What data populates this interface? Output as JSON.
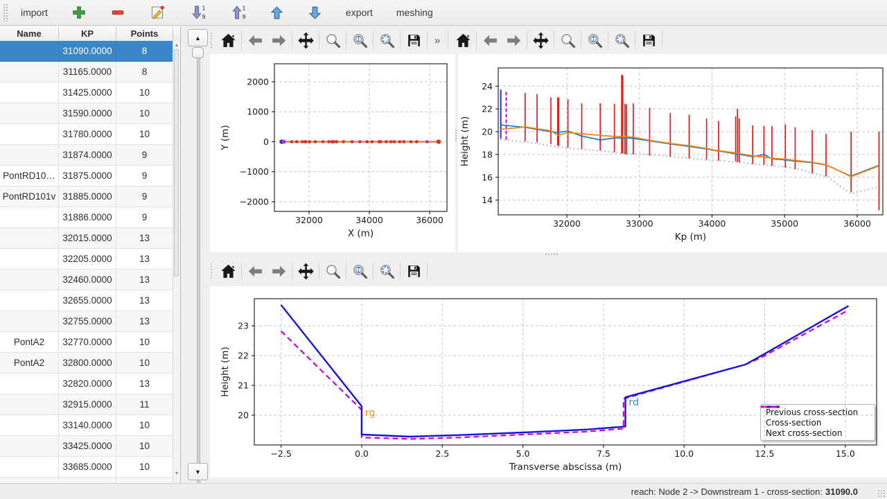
{
  "app_toolbar": {
    "items": [
      {
        "type": "text",
        "label": "import",
        "name": "import-button"
      },
      {
        "type": "icon",
        "icon": "add",
        "name": "add-cross-section-button"
      },
      {
        "type": "icon",
        "icon": "remove",
        "name": "remove-cross-section-button"
      },
      {
        "type": "icon",
        "icon": "edit",
        "name": "edit-cross-section-button"
      },
      {
        "type": "icon",
        "icon": "sort-desc",
        "name": "sort-descending-button"
      },
      {
        "type": "icon",
        "icon": "sort-asc",
        "name": "sort-ascending-button"
      },
      {
        "type": "icon",
        "icon": "arrow-up",
        "name": "move-up-button"
      },
      {
        "type": "icon",
        "icon": "arrow-down",
        "name": "move-down-button"
      },
      {
        "type": "text",
        "label": "export",
        "name": "export-button"
      },
      {
        "type": "text",
        "label": "meshing",
        "name": "meshing-button"
      }
    ]
  },
  "table": {
    "columns": [
      "Name",
      "KP",
      "Points"
    ],
    "selected_index": 0,
    "rows": [
      {
        "name": "",
        "kp": "31090.0000",
        "points": "8"
      },
      {
        "name": "",
        "kp": "31165.0000",
        "points": "8"
      },
      {
        "name": "",
        "kp": "31425.0000",
        "points": "10"
      },
      {
        "name": "",
        "kp": "31590.0000",
        "points": "10"
      },
      {
        "name": "",
        "kp": "31780.0000",
        "points": "10"
      },
      {
        "name": "",
        "kp": "31874.0000",
        "points": "9"
      },
      {
        "name": "PontRD10…",
        "kp": "31875.0000",
        "points": "9"
      },
      {
        "name": "PontRD101v",
        "kp": "31885.0000",
        "points": "9"
      },
      {
        "name": "",
        "kp": "31886.0000",
        "points": "9"
      },
      {
        "name": "",
        "kp": "32015.0000",
        "points": "13"
      },
      {
        "name": "",
        "kp": "32205.0000",
        "points": "13"
      },
      {
        "name": "",
        "kp": "32460.0000",
        "points": "13"
      },
      {
        "name": "",
        "kp": "32655.0000",
        "points": "13"
      },
      {
        "name": "",
        "kp": "32755.0000",
        "points": "13"
      },
      {
        "name": "PontA2",
        "kp": "32770.0000",
        "points": "10"
      },
      {
        "name": "PontA2",
        "kp": "32800.0000",
        "points": "10"
      },
      {
        "name": "",
        "kp": "32820.0000",
        "points": "13"
      },
      {
        "name": "",
        "kp": "32915.0000",
        "points": "11"
      },
      {
        "name": "",
        "kp": "33140.0000",
        "points": "10"
      },
      {
        "name": "",
        "kp": "33425.0000",
        "points": "10"
      },
      {
        "name": "",
        "kp": "33685.0000",
        "points": "10"
      },
      {
        "name": "",
        "kp": "",
        "points": ""
      }
    ]
  },
  "nav_toolbar": {
    "overflow": "»",
    "icons": [
      {
        "icon": "home",
        "name": "home-button"
      },
      {
        "icon": "back",
        "name": "back-button"
      },
      {
        "icon": "forward",
        "name": "forward-button"
      },
      {
        "icon": "pan",
        "name": "pan-button"
      },
      {
        "icon": "zoom",
        "name": "zoom-button"
      },
      {
        "icon": "zoom-one",
        "name": "zoom-100-button"
      },
      {
        "icon": "zoom-region",
        "name": "zoom-selection-button"
      },
      {
        "icon": "save",
        "name": "save-figure-button"
      }
    ]
  },
  "status_bar": {
    "text": "reach: Node 2 -> Downstream 1 - cross-section: ",
    "value": "31090.0"
  },
  "chart_data": [
    {
      "id": "plan",
      "type": "line",
      "xlabel": "X (m)",
      "ylabel": "Y (m)",
      "xlim": [
        30851,
        36575
      ],
      "ylim": [
        -2324,
        2601
      ],
      "xticks": [
        32000,
        34000,
        36000
      ],
      "xtick_labels": [
        "32000",
        "34000",
        "36000"
      ],
      "yticks": [
        2000,
        1000,
        0,
        -1000,
        -2000
      ],
      "ytick_labels": [
        "2000",
        "1000",
        "0",
        "−1000",
        "−2000"
      ],
      "path_y": 0,
      "path_x_range": [
        31090,
        36310
      ],
      "line_color": "#ff7f0e",
      "underline_color": "#7796b8",
      "marker_color": "#e8291d",
      "first_marker_color": "#3535cf",
      "second_marker_color": "#b238d2",
      "marker_x": [
        31090,
        31165,
        31425,
        31590,
        31780,
        31874,
        31875,
        31885,
        31886,
        32015,
        32205,
        32460,
        32655,
        32755,
        32770,
        32800,
        32820,
        32915,
        33140,
        33425,
        33685,
        33925,
        34090,
        34325,
        34350,
        34375,
        34560,
        34715,
        34825,
        35010,
        35145,
        35380,
        35570,
        35915,
        36300
      ]
    },
    {
      "id": "profile",
      "type": "line",
      "xlabel": "Kp (m)",
      "ylabel": "Height (m)",
      "xlim": [
        31055,
        36353
      ],
      "ylim": [
        12.7,
        25.6
      ],
      "xticks": [
        32000,
        33000,
        34000,
        35000,
        36000
      ],
      "xtick_labels": [
        "32000",
        "33000",
        "34000",
        "35000",
        "36000"
      ],
      "yticks": [
        14,
        16,
        18,
        20,
        22,
        24
      ],
      "ytick_labels": [
        "14",
        "16",
        "18",
        "20",
        "22",
        "24"
      ],
      "bar_color": "#e51c16",
      "bars": [
        [
          31425,
          19.15,
          23.4
        ],
        [
          31590,
          19.05,
          23.3
        ],
        [
          31780,
          18.9,
          23.0
        ],
        [
          31874,
          18.8,
          23.0
        ],
        [
          31875,
          18.8,
          23.0
        ],
        [
          31885,
          18.75,
          23.0
        ],
        [
          31886,
          18.75,
          23.0
        ],
        [
          32015,
          18.6,
          22.85
        ],
        [
          32205,
          18.5,
          22.5
        ],
        [
          32460,
          18.35,
          22.5
        ],
        [
          32655,
          18.2,
          22.45
        ],
        [
          32755,
          18.1,
          25.0
        ],
        [
          32770,
          18.1,
          24.95
        ],
        [
          32800,
          18.05,
          22.45
        ],
        [
          32820,
          18.0,
          22.4
        ],
        [
          32915,
          18.0,
          22.5
        ],
        [
          33140,
          17.9,
          22.1
        ],
        [
          33425,
          17.8,
          21.65
        ],
        [
          33685,
          17.65,
          21.5
        ],
        [
          33925,
          17.55,
          21.15
        ],
        [
          34090,
          17.45,
          20.95
        ],
        [
          34325,
          17.4,
          21.35
        ],
        [
          34350,
          17.35,
          22.0
        ],
        [
          34375,
          17.3,
          21.15
        ],
        [
          34560,
          17.15,
          20.55
        ],
        [
          34715,
          17.1,
          20.5
        ],
        [
          34825,
          17.0,
          20.5
        ],
        [
          35010,
          16.85,
          20.65
        ],
        [
          35145,
          16.7,
          20.4
        ],
        [
          35380,
          16.35,
          20.15
        ],
        [
          35570,
          16.1,
          19.8
        ],
        [
          35915,
          14.7,
          20.0
        ],
        [
          36300,
          13.1,
          20.0
        ]
      ],
      "selected_line": {
        "x": 31090,
        "y0": 19.4,
        "y1": 23.7,
        "color": "#2a2ae0"
      },
      "next_line": {
        "x": 31165,
        "y0": 19.3,
        "y1": 23.5,
        "color": "#cc00cc"
      },
      "series": [
        {
          "name": "bed",
          "style": "dotted",
          "color": "#c9c9c9",
          "width": 2.6,
          "points": [
            [
              31090,
              19.3
            ],
            [
              31500,
              19.05
            ],
            [
              31900,
              18.62
            ],
            [
              32205,
              18.45
            ],
            [
              32500,
              18.3
            ],
            [
              32800,
              18.08
            ],
            [
              33140,
              18.0
            ],
            [
              33425,
              17.82
            ],
            [
              33685,
              17.68
            ],
            [
              33925,
              17.52
            ],
            [
              34090,
              17.48
            ],
            [
              34375,
              17.3
            ],
            [
              34715,
              17.1
            ],
            [
              35010,
              16.9
            ],
            [
              35200,
              16.72
            ],
            [
              35380,
              16.35
            ],
            [
              35570,
              16.1
            ],
            [
              35915,
              14.55
            ],
            [
              36300,
              15.15
            ]
          ]
        },
        {
          "name": "left-bank",
          "style": "solid",
          "color": "#1f77b4",
          "width": 1.7,
          "points": [
            [
              31090,
              20.6
            ],
            [
              31425,
              20.38
            ],
            [
              31780,
              20.0
            ],
            [
              31874,
              19.92
            ],
            [
              31886,
              19.95
            ],
            [
              32015,
              20.05
            ],
            [
              32205,
              19.62
            ],
            [
              32460,
              19.27
            ],
            [
              32655,
              19.45
            ],
            [
              32820,
              19.45
            ],
            [
              32915,
              19.42
            ],
            [
              33140,
              19.2
            ],
            [
              33425,
              18.92
            ],
            [
              33685,
              18.72
            ],
            [
              33925,
              18.48
            ],
            [
              34090,
              18.3
            ],
            [
              34350,
              18.05
            ],
            [
              34560,
              17.8
            ],
            [
              34715,
              18.0
            ],
            [
              34825,
              17.62
            ],
            [
              35010,
              17.52
            ],
            [
              35145,
              17.42
            ],
            [
              35380,
              17.28
            ],
            [
              35570,
              17.08
            ],
            [
              35915,
              16.1
            ],
            [
              36300,
              17.05
            ]
          ]
        },
        {
          "name": "right-bank",
          "style": "solid",
          "color": "#ff7f0e",
          "width": 1.7,
          "points": [
            [
              31090,
              20.2
            ],
            [
              31425,
              20.42
            ],
            [
              31780,
              20.08
            ],
            [
              31874,
              19.68
            ],
            [
              32015,
              19.92
            ],
            [
              32205,
              19.82
            ],
            [
              32460,
              19.68
            ],
            [
              32655,
              19.58
            ],
            [
              32915,
              19.52
            ],
            [
              33140,
              19.25
            ],
            [
              33425,
              18.97
            ],
            [
              33685,
              18.77
            ],
            [
              33925,
              18.52
            ],
            [
              34090,
              18.32
            ],
            [
              34350,
              18.12
            ],
            [
              34560,
              17.88
            ],
            [
              34715,
              17.78
            ],
            [
              34825,
              17.68
            ],
            [
              35010,
              17.58
            ],
            [
              35145,
              17.48
            ],
            [
              35380,
              17.32
            ],
            [
              35570,
              17.1
            ],
            [
              35915,
              16.05
            ],
            [
              36300,
              17.0
            ]
          ]
        }
      ]
    },
    {
      "id": "cross_section",
      "type": "line",
      "xlabel": "Transverse abscissa (m)",
      "ylabel": "Height (m)",
      "xlim": [
        -3.33,
        15.97
      ],
      "ylim": [
        19.0,
        23.91
      ],
      "xticks": [
        -2.5,
        0,
        2.5,
        5,
        7.5,
        10,
        12.5,
        15
      ],
      "xtick_labels": [
        "−2.5",
        "0.0",
        "2.5",
        "5.0",
        "7.5",
        "10.0",
        "12.5",
        "15.0"
      ],
      "yticks": [
        20,
        21,
        22,
        23
      ],
      "ytick_labels": [
        "20",
        "21",
        "22",
        "23"
      ],
      "series": [
        {
          "name": "Next cross-section",
          "style": "dashed",
          "color": "#cc00cc",
          "width": 2.2,
          "points": [
            [
              -2.5,
              22.82
            ],
            [
              0,
              20.18
            ],
            [
              0,
              19.25
            ],
            [
              1.5,
              19.2
            ],
            [
              3,
              19.25
            ],
            [
              5,
              19.35
            ],
            [
              7,
              19.45
            ],
            [
              8.12,
              19.55
            ],
            [
              8.12,
              20.55
            ],
            [
              11.95,
              21.72
            ],
            [
              12.45,
              21.97
            ],
            [
              15.05,
              23.5
            ]
          ]
        },
        {
          "name": "Cross-section",
          "style": "solid",
          "color": "#1414dd",
          "width": 2.4,
          "points": [
            [
              -2.5,
              23.7
            ],
            [
              0,
              20.3
            ],
            [
              0,
              19.35
            ],
            [
              1.5,
              19.28
            ],
            [
              3,
              19.33
            ],
            [
              5,
              19.42
            ],
            [
              7,
              19.52
            ],
            [
              8.18,
              19.62
            ],
            [
              8.18,
              20.6
            ],
            [
              11.9,
              21.7
            ],
            [
              12.4,
              22.0
            ],
            [
              15.1,
              23.67
            ]
          ]
        }
      ],
      "annotations": [
        {
          "text": "rg",
          "x": 0.1,
          "y": 19.98,
          "color": "#ff8c1a"
        },
        {
          "text": "rd",
          "x": 8.28,
          "y": 20.33,
          "color": "#3c8ec8"
        }
      ],
      "legend": [
        {
          "label": "Previous cross-section",
          "color": "#1a1a1a",
          "dash": true
        },
        {
          "label": "Cross-section",
          "color": "#1414dd",
          "dash": false
        },
        {
          "label": "Next cross-section",
          "color": "#cc00cc",
          "dash": true
        }
      ]
    }
  ]
}
